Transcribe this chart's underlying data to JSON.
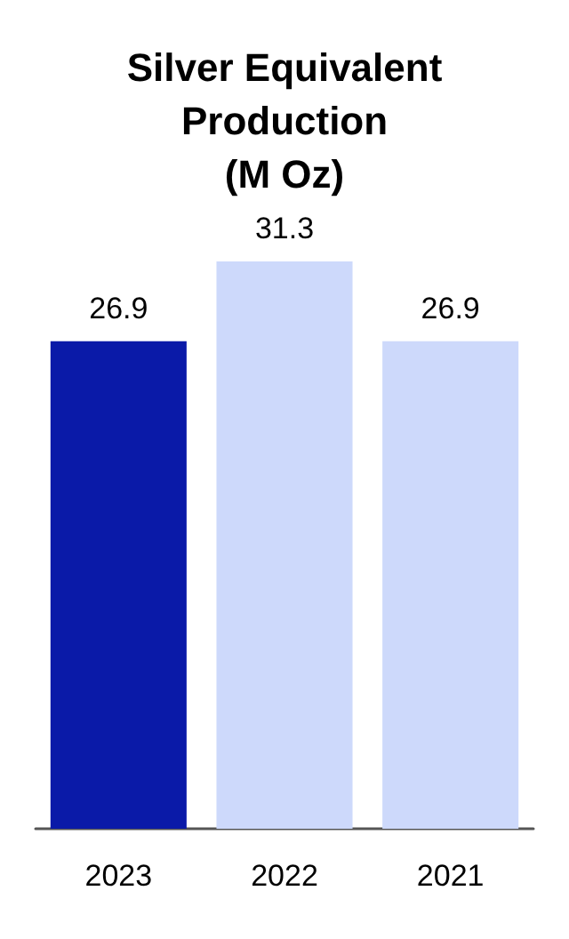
{
  "chart_data": {
    "type": "bar",
    "title": "Silver Equivalent\nProduction\n(M Oz)",
    "categories": [
      "2023",
      "2022",
      "2021"
    ],
    "values": [
      26.9,
      31.3,
      26.9
    ],
    "colors": [
      "#0a1aa8",
      "#cdd9fb",
      "#cdd9fb"
    ],
    "data_labels": true
  }
}
